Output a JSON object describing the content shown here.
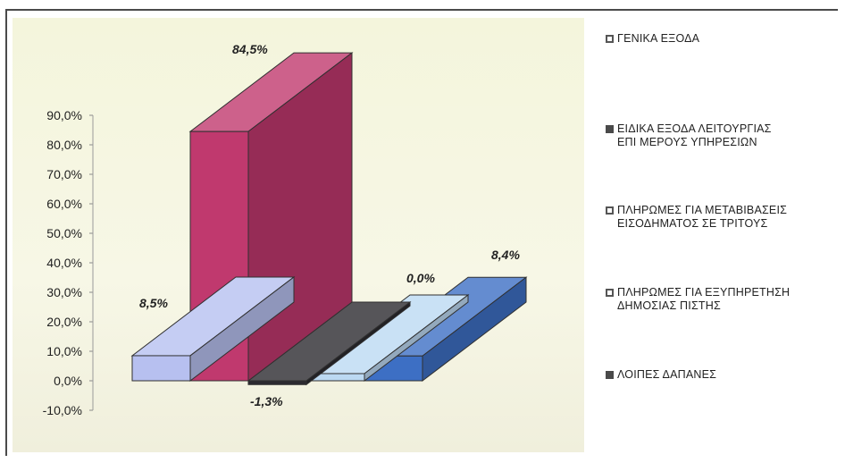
{
  "chart_data": {
    "type": "bar",
    "style": "3d",
    "categories": [
      "ΓΕΝΙΚΑ ΕΞΟΔΑ",
      "ΕΙΔΙΚΑ ΕΞΟΔΑ ΛΕΙΤΟΥΡΓΙΑΣ ΕΠΙ ΜΕΡΟΥΣ ΥΠΗΡΕΣΙΩΝ",
      "ΠΛΗΡΩΜΕΣ ΓΙΑ ΜΕΤΑΒΙΒΑΣΕΙΣ ΕΙΣΟΔΗΜΑΤΟΣ ΣΕ ΤΡΙΤΟΥΣ",
      "ΠΛΗΡΩΜΕΣ ΓΙΑ ΕΞΥΠΗΡΕΤΗΣΗ ΔΗΜΟΣΙΑΣ ΠΙΣΤΗΣ",
      "ΛΟΙΠΕΣ ΔΑΠΑΝΕΣ"
    ],
    "values": [
      8.5,
      84.5,
      -1.3,
      0.0,
      8.4
    ],
    "data_labels": [
      "8,5%",
      "84,5%",
      "-1,3%",
      "0,0%",
      "8,4%"
    ],
    "colors": [
      "#b7c0f0",
      "#c0396e",
      "#2c2a30",
      "#bcd9f2",
      "#3d6fc4"
    ],
    "ylim": [
      -10,
      90
    ],
    "yticks": [
      90,
      80,
      70,
      60,
      50,
      40,
      30,
      20,
      10,
      0,
      -10
    ],
    "ytick_labels": [
      "90,0%",
      "80,0%",
      "70,0%",
      "60,0%",
      "50,0%",
      "40,0%",
      "30,0%",
      "20,0%",
      "10,0%",
      "0,0%",
      "-10,0%"
    ],
    "legend_position": "right",
    "grid": false
  },
  "legend": {
    "items": [
      {
        "label": "ΓΕΝΙΚΑ ΕΞΟΔΑ",
        "swatch": "hollow"
      },
      {
        "label": "ΕΙΔΙΚΑ ΕΞΟΔΑ ΛΕΙΤΟΥΡΓΙΑΣ\nΕΠΙ ΜΕΡΟΥΣ ΥΠΗΡΕΣΙΩΝ",
        "swatch": "filled"
      },
      {
        "label": "ΠΛΗΡΩΜΕΣ ΓΙΑ ΜΕΤΑΒΙΒΑΣΕΙΣ\nΕΙΣΟΔΗΜΑΤΟΣ ΣΕ ΤΡΙΤΟΥΣ",
        "swatch": "hollow"
      },
      {
        "label": "ΠΛΗΡΩΜΕΣ ΓΙΑ ΕΞΥΠΗΡΕΤΗΣΗ\nΔΗΜΟΣΙΑΣ ΠΙΣΤΗΣ",
        "swatch": "hollow"
      },
      {
        "label": "ΛΟΙΠΕΣ ΔΑΠΑΝΕΣ",
        "swatch": "filled"
      }
    ]
  }
}
